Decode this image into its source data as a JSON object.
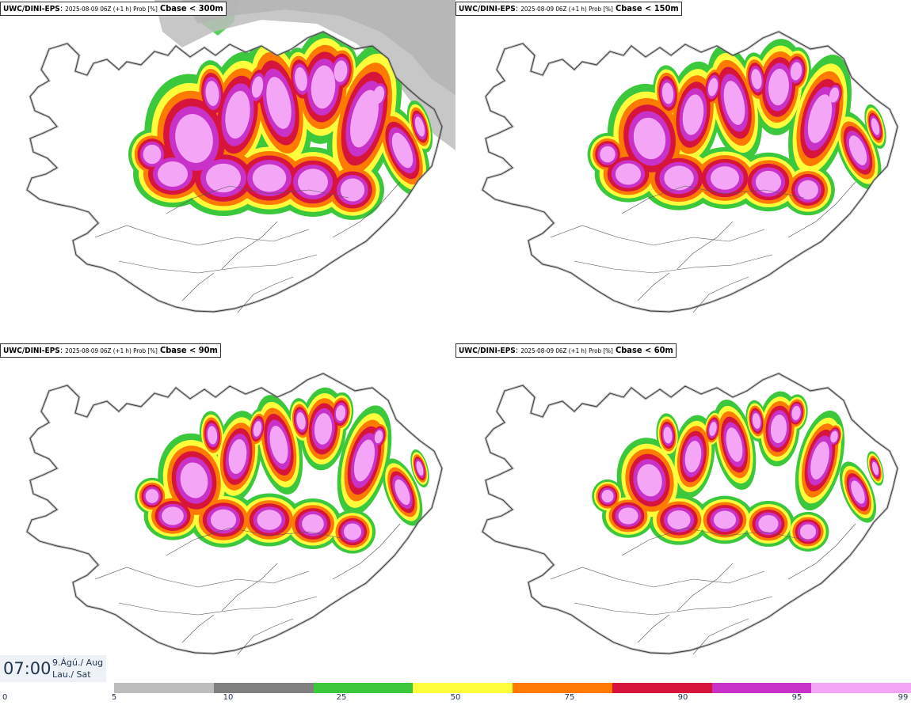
{
  "panels": [
    {
      "model": "UWC/DINI-EPS",
      "info": "2025-08-09 06Z (+1 h) Prob [%]",
      "cbase": "Cbase < 300m",
      "intensity": 1.0
    },
    {
      "model": "UWC/DINI-EPS",
      "info": "2025-08-09 06Z (+1 h) Prob [%]",
      "cbase": "Cbase < 150m",
      "intensity": 0.82
    },
    {
      "model": "UWC/DINI-EPS",
      "info": "2025-08-09 06Z (+1 h) Prob [%]",
      "cbase": "Cbase < 90m",
      "intensity": 0.68
    },
    {
      "model": "UWC/DINI-EPS",
      "info": "2025-08-09 06Z (+1 h) Prob [%]",
      "cbase": "Cbase < 60m",
      "intensity": 0.6
    }
  ],
  "timebox": {
    "time": "07:00",
    "date": "9.Ágú./ Aug",
    "day": "Lau./ Sat"
  },
  "legend": {
    "ticks": [
      "0",
      "5",
      "10",
      "25",
      "50",
      "75",
      "90",
      "95",
      "99"
    ],
    "colors": [
      "#bdbdbd",
      "#808080",
      "#3cc83c",
      "#ffff3c",
      "#ff7a00",
      "#d7143c",
      "#c832c8",
      "#f5a5f5"
    ]
  }
}
